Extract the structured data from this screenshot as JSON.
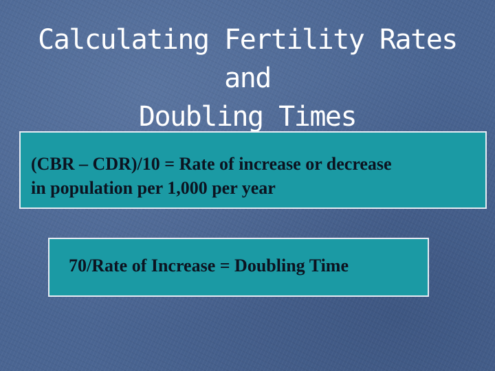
{
  "slide": {
    "title_line1": "Calculating Fertility Rates and",
    "title_line2": "Doubling Times",
    "formula_box": {
      "line1": "(CBR – CDR)/10 = Rate of increase or decrease",
      "line2": "in population per 1,000 per year"
    },
    "doubling_box": {
      "text": "70/Rate of Increase = Doubling Time"
    }
  },
  "colors": {
    "background": "#4a6592",
    "box_fill": "#1b9aa4",
    "box_border": "#e8edf5",
    "title_text": "#ffffff",
    "box_text": "#0c1320"
  }
}
